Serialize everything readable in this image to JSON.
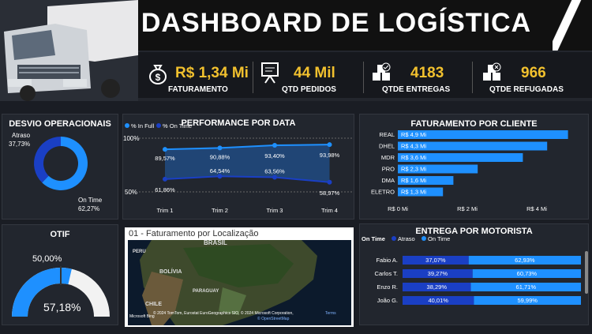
{
  "header": {
    "title": "DASHBOARD DE LOGÍSTICA"
  },
  "kpis": [
    {
      "value": "R$ 1,34 Mi",
      "label": "FATURAMENTO",
      "icon": "money-bag-icon"
    },
    {
      "value": "44 Mil",
      "label": "QTD PEDIDOS",
      "icon": "presentation-board-icon"
    },
    {
      "value": "4183",
      "label": "QTDE ENTREGAS",
      "icon": "boxes-check-icon"
    },
    {
      "value": "966",
      "label": "QTDE REFUGADAS",
      "icon": "boxes-cancel-icon"
    }
  ],
  "desvio": {
    "title": "DESVIO OPERACIONAIS",
    "atraso_label": "Atraso",
    "atraso_value": "37,73%",
    "ontime_label": "On Time",
    "ontime_value": "62,27%"
  },
  "otif": {
    "title": "OTIF",
    "target_label": "50,00%",
    "value_label": "57,18%"
  },
  "performance": {
    "title": "PERFORMANCE POR DATA",
    "legend": [
      "% In Full",
      "% On Time"
    ],
    "y_top": "100%",
    "y_bottom": "50%"
  },
  "faturamento_cliente": {
    "title": "FATURAMENTO POR CLIENTE",
    "xticks": [
      "R$ 0 Mi",
      "R$ 2 Mi",
      "R$ 4 Mi"
    ]
  },
  "map": {
    "title": "01 - Faturamento por Localização",
    "labels": [
      "BRASIL",
      "PERU",
      "BOLÍVIA",
      "PARAGUAY",
      "CHILE"
    ],
    "attribution": "© 2024 TomTom, Eurostat EuroGeographics SIO, © 2024 Microsoft Corporation,",
    "terms": "Terms",
    "osm": "© OpenStreetMap",
    "brand": "Microsoft Bing"
  },
  "motorista": {
    "title": "ENTREGA POR MOTORISTA",
    "legend_title": "On Time",
    "legend": [
      "Atraso",
      "On Time"
    ]
  },
  "colors": {
    "bright_blue": "#1e90ff",
    "dark_blue": "#1a3fc4",
    "gold": "#f2c12e",
    "bg": "#1a1d24"
  },
  "chart_data": [
    {
      "type": "pie",
      "title": "DESVIO OPERACIONAIS",
      "categories": [
        "Atraso",
        "On Time"
      ],
      "values": [
        37.73,
        62.27
      ]
    },
    {
      "type": "gauge",
      "title": "OTIF",
      "value": 57.18,
      "target": 50.0,
      "range": [
        0,
        100
      ]
    },
    {
      "type": "line",
      "title": "PERFORMANCE POR DATA",
      "categories": [
        "Trim 1",
        "Trim 2",
        "Trim 3",
        "Trim 4"
      ],
      "ylim": [
        50,
        100
      ],
      "series": [
        {
          "name": "% In Full",
          "values": [
            89.57,
            90.88,
            93.4,
            93.98
          ],
          "labels": [
            "89,57%",
            "90,88%",
            "93,40%",
            "93,98%"
          ]
        },
        {
          "name": "% On Time",
          "values": [
            61.86,
            64.54,
            63.56,
            58.97
          ],
          "labels": [
            "61,86%",
            "64,54%",
            "63,56%",
            "58,97%"
          ]
        }
      ]
    },
    {
      "type": "bar",
      "title": "FATURAMENTO POR CLIENTE",
      "categories": [
        "REAL",
        "DHEL",
        "MDR",
        "PRO",
        "DMA",
        "ELETRO"
      ],
      "values": [
        4.9,
        4.3,
        3.6,
        2.3,
        1.6,
        1.3
      ],
      "labels": [
        "R$ 4,9 Mi",
        "R$ 4,3 Mi",
        "R$ 3,6 Mi",
        "R$ 2,3 Mi",
        "R$ 1,6 Mi",
        "R$ 1,3 Mi"
      ],
      "xlim": [
        0,
        5
      ]
    },
    {
      "type": "bar",
      "title": "ENTREGA POR MOTORISTA",
      "categories": [
        "Fabio A.",
        "Carlos T.",
        "Enzo R.",
        "João G."
      ],
      "series": [
        {
          "name": "Atraso",
          "values": [
            37.07,
            39.27,
            38.29,
            40.01
          ],
          "labels": [
            "37,07%",
            "39,27%",
            "38,29%",
            "40,01%"
          ]
        },
        {
          "name": "On Time",
          "values": [
            62.93,
            60.73,
            61.71,
            59.99
          ],
          "labels": [
            "62,93%",
            "60,73%",
            "61,71%",
            "59,99%"
          ]
        }
      ]
    }
  ]
}
